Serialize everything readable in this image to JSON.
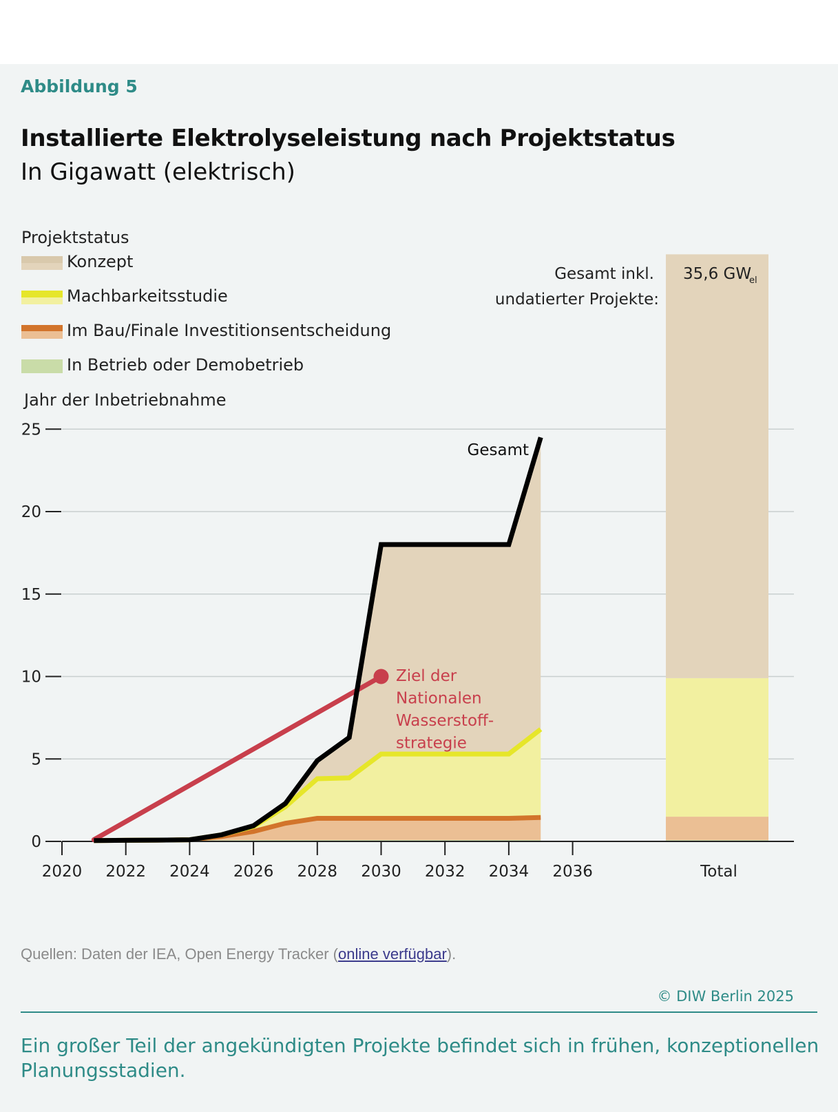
{
  "figure_label": "Abbildung 5",
  "title": "Installierte Elektrolyseleistung nach Projektstatus",
  "subtitle": "In Gigawatt (elektrisch)",
  "legend": {
    "title": "Projektstatus",
    "items": [
      {
        "label": "Konzept",
        "color_dark": "#d9c9ac",
        "color_light": "#e3d4bb"
      },
      {
        "label": "Machbarkeitsstudie",
        "color_dark": "#e6e62a",
        "color_light": "#f2f0a0"
      },
      {
        "label": "Im Bau/Finale Investitionsentscheidung",
        "color_dark": "#d2742b",
        "color_light": "#ebbf94"
      },
      {
        "label": "In Betrieb oder Demobetrieb",
        "color_dark": "#c9dca8",
        "color_light": "#c9dca8"
      }
    ]
  },
  "source": {
    "prefix": "Quellen: Daten der IEA, Open Energy Tracker (",
    "link_text": "online verfügbar",
    "suffix": ")."
  },
  "copyright": "© DIW Berlin 2025",
  "caption": "Ein großer Teil der angekündigten Projekte befindet sich in frühen, konzeptionellen Planungsstadien.",
  "chart_data": {
    "type": "area",
    "ylabel": "Jahr der Inbetriebnahme",
    "ylim": [
      0,
      25
    ],
    "yticks": [
      0,
      5,
      10,
      15,
      20,
      25
    ],
    "xlim": [
      2020,
      2037
    ],
    "xticks": [
      2020,
      2022,
      2024,
      2026,
      2028,
      2030,
      2032,
      2034,
      2036
    ],
    "x": [
      2021,
      2022,
      2023,
      2024,
      2025,
      2026,
      2027,
      2028,
      2029,
      2030,
      2031,
      2032,
      2033,
      2034,
      2035
    ],
    "series": [
      {
        "name": "In Betrieb oder Demobetrieb",
        "stack_top": [
          0.02,
          0.04,
          0.05,
          0.06,
          0.07,
          0.08,
          0.08,
          0.08,
          0.08,
          0.08,
          0.08,
          0.08,
          0.08,
          0.08,
          0.08
        ],
        "color": "#c9dca8"
      },
      {
        "name": "Im Bau/Finale Investitionsentscheidung",
        "stack_top": [
          0.05,
          0.07,
          0.08,
          0.1,
          0.3,
          0.6,
          1.1,
          1.4,
          1.4,
          1.4,
          1.4,
          1.4,
          1.4,
          1.4,
          1.45
        ],
        "color": "#ebbf94",
        "line_color": "#d2742b"
      },
      {
        "name": "Machbarkeitsstudie",
        "stack_top": [
          0.05,
          0.07,
          0.08,
          0.1,
          0.4,
          0.9,
          2.1,
          3.8,
          3.85,
          5.3,
          5.3,
          5.3,
          5.3,
          5.3,
          6.8
        ],
        "color": "#f2f0a0",
        "line_color": "#e6e62a"
      },
      {
        "name": "Konzept",
        "stack_top": [
          0.05,
          0.07,
          0.08,
          0.1,
          0.4,
          0.95,
          2.3,
          4.9,
          6.3,
          18.0,
          18.0,
          18.0,
          18.0,
          18.0,
          24.5
        ],
        "color": "#e3d4bb"
      }
    ],
    "total_line": {
      "name": "Gesamt",
      "values": [
        0.05,
        0.07,
        0.08,
        0.1,
        0.4,
        0.95,
        2.3,
        4.9,
        6.3,
        18.0,
        18.0,
        18.0,
        18.0,
        18.0,
        24.5
      ],
      "color": "#000000"
    },
    "target": {
      "label_lines": [
        "Ziel der",
        "Nationalen",
        "Wasserstoff-",
        "strategie"
      ],
      "from": [
        2021,
        0.1
      ],
      "to": [
        2030,
        10
      ],
      "color": "#c83f4c"
    },
    "total_bar": {
      "category": "Total",
      "note_lines": [
        "Gesamt inkl.",
        "undatierter Projekte:"
      ],
      "value_label": "35,6 GW",
      "value_sub": "el",
      "segments_top": [
        {
          "status": "In Betrieb oder Demobetrieb",
          "top": 0.08,
          "color": "#c9dca8"
        },
        {
          "status": "Im Bau/Finale Investitionsentscheidung",
          "top": 1.5,
          "color": "#ebbf94"
        },
        {
          "status": "Machbarkeitsstudie",
          "top": 9.9,
          "color": "#f2f0a0"
        },
        {
          "status": "Konzept",
          "top": 35.6,
          "color": "#e3d4bb"
        }
      ]
    },
    "grid": true
  }
}
